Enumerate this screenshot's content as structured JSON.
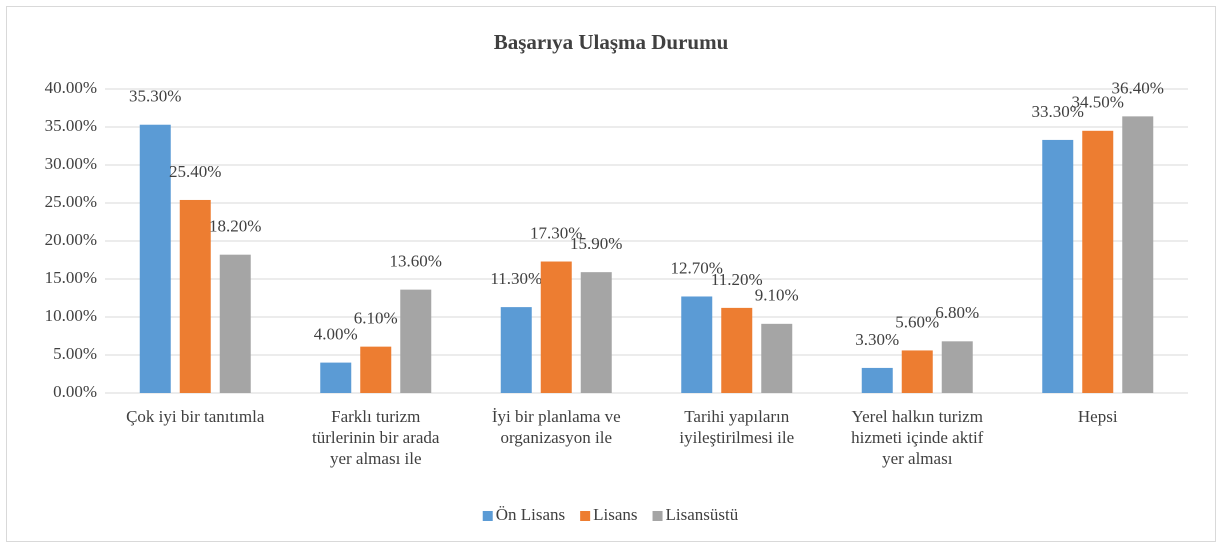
{
  "chart_data": {
    "type": "bar",
    "title": "Başarıya Ulaşma Durumu",
    "categories": [
      "Çok iyi bir tanıtımla",
      "Farklı turizm\ntürlerinin bir arada\nyer alması ile",
      "İyi bir planlama ve\norganizasyon ile",
      "Tarihi yapıların\niyileştirilmesi ile",
      "Yerel halkın turizm\nhizmeti içinde aktif\nyer alması",
      "Hepsi"
    ],
    "series": [
      {
        "name": "Ön Lisans",
        "color": "#5b9bd5",
        "values": [
          35.3,
          4.0,
          11.3,
          12.7,
          3.3,
          33.3
        ],
        "value_labels": [
          "35.30%",
          "4.00%",
          "11.30%",
          "12.70%",
          "3.30%",
          "33.30%"
        ]
      },
      {
        "name": "Lisans",
        "color": "#ed7d31",
        "values": [
          25.4,
          6.1,
          17.3,
          11.2,
          5.6,
          34.5
        ],
        "value_labels": [
          "25.40%",
          "6.10%",
          "17.30%",
          "11.20%",
          "5.60%",
          "34.50%"
        ]
      },
      {
        "name": "Lisansüstü",
        "color": "#a5a5a5",
        "values": [
          18.2,
          13.6,
          15.9,
          9.1,
          6.8,
          36.4
        ],
        "value_labels": [
          "18.20%",
          "13.60%",
          "15.90%",
          "9.10%",
          "6.80%",
          "36.40%"
        ]
      }
    ],
    "ylim": [
      0,
      40
    ],
    "yticks": [
      {
        "value": 0,
        "label": "0.00%"
      },
      {
        "value": 5,
        "label": "5.00%"
      },
      {
        "value": 10,
        "label": "10.00%"
      },
      {
        "value": 15,
        "label": "15.00%"
      },
      {
        "value": 20,
        "label": "20.00%"
      },
      {
        "value": 25,
        "label": "25.00%"
      },
      {
        "value": 30,
        "label": "30.00%"
      },
      {
        "value": 35,
        "label": "35.00%"
      },
      {
        "value": 40,
        "label": "40.00%"
      }
    ],
    "grid": true,
    "legend": "bottom"
  }
}
